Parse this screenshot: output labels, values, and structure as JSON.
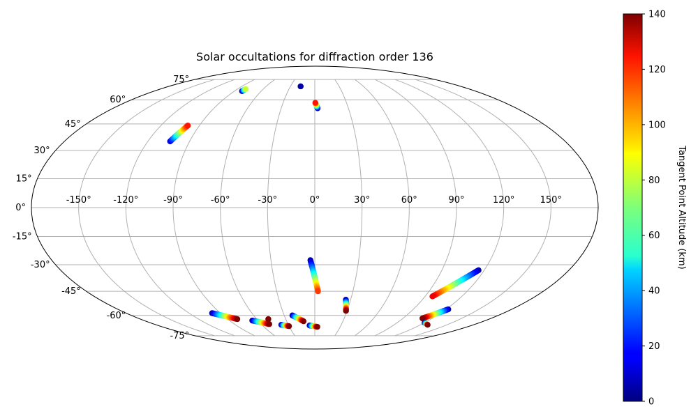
{
  "chart_data": {
    "type": "scatter",
    "projection": "mollweide",
    "title": "Solar occultations for diffraction order 136",
    "longitude_ticks": [
      "-150°",
      "-120°",
      "-90°",
      "-60°",
      "-30°",
      "0°",
      "30°",
      "60°",
      "90°",
      "120°",
      "150°"
    ],
    "latitude_ticks": [
      "75°",
      "60°",
      "45°",
      "30°",
      "15°",
      "0°",
      "-15°",
      "-30°",
      "-45°",
      "-60°",
      "-75°"
    ],
    "grid": true,
    "colorbar": {
      "label": "Tangent Point Altitude (km)",
      "min": 0,
      "max": 140,
      "ticks": [
        "0",
        "20",
        "40",
        "60",
        "80",
        "100",
        "120",
        "140"
      ],
      "colormap": "jet"
    },
    "series": [
      {
        "x": [
          -81.5,
          -80.5
        ],
        "y": [
          66,
          67.5
        ],
        "altitude": [
          5,
          80
        ]
      },
      {
        "x": [
          -104,
          -99
        ],
        "y": [
          35,
          44
        ],
        "altitude": [
          10,
          120
        ]
      },
      {
        "x": [
          -17.5,
          -17.5
        ],
        "y": [
          69.5,
          69.5
        ],
        "altitude": [
          5,
          5
        ]
      },
      {
        "x": [
          2.5,
          0.5
        ],
        "y": [
          54.5,
          58
        ],
        "altitude": [
          5,
          120
        ]
      },
      {
        "x": [
          -3,
          2.5
        ],
        "y": [
          -27.5,
          -45
        ],
        "altitude": [
          5,
          115
        ]
      },
      {
        "x": [
          26,
          29
        ],
        "y": [
          -50,
          -57
        ],
        "altitude": [
          5,
          140
        ]
      },
      {
        "x": [
          116,
          96
        ],
        "y": [
          -33,
          -48
        ],
        "altitude": [
          5,
          125
        ]
      },
      {
        "x": [
          -98,
          -80
        ],
        "y": [
          -58.5,
          -62.5
        ],
        "altitude": [
          5,
          140
        ]
      },
      {
        "x": [
          -66,
          -51
        ],
        "y": [
          -63.5,
          -66
        ],
        "altitude": [
          5,
          140
        ]
      },
      {
        "x": [
          -48,
          -48
        ],
        "y": [
          -62.5,
          -62.5
        ],
        "altitude": [
          140,
          140
        ]
      },
      {
        "x": [
          -38,
          -30
        ],
        "y": [
          -66.5,
          -67.5
        ],
        "altitude": [
          5,
          140
        ]
      },
      {
        "x": [
          -22,
          -12
        ],
        "y": [
          -60,
          -64
        ],
        "altitude": [
          5,
          140
        ]
      },
      {
        "x": [
          -6,
          3
        ],
        "y": [
          -67,
          -68
        ],
        "altitude": [
          5,
          140
        ]
      },
      {
        "x": [
          122,
          110
        ],
        "y": [
          -56,
          -62
        ],
        "altitude": [
          5,
          140
        ]
      },
      {
        "x": [
          120,
          128
        ],
        "y": [
          -65,
          -66.5
        ],
        "altitude": [
          5,
          140
        ]
      }
    ]
  }
}
